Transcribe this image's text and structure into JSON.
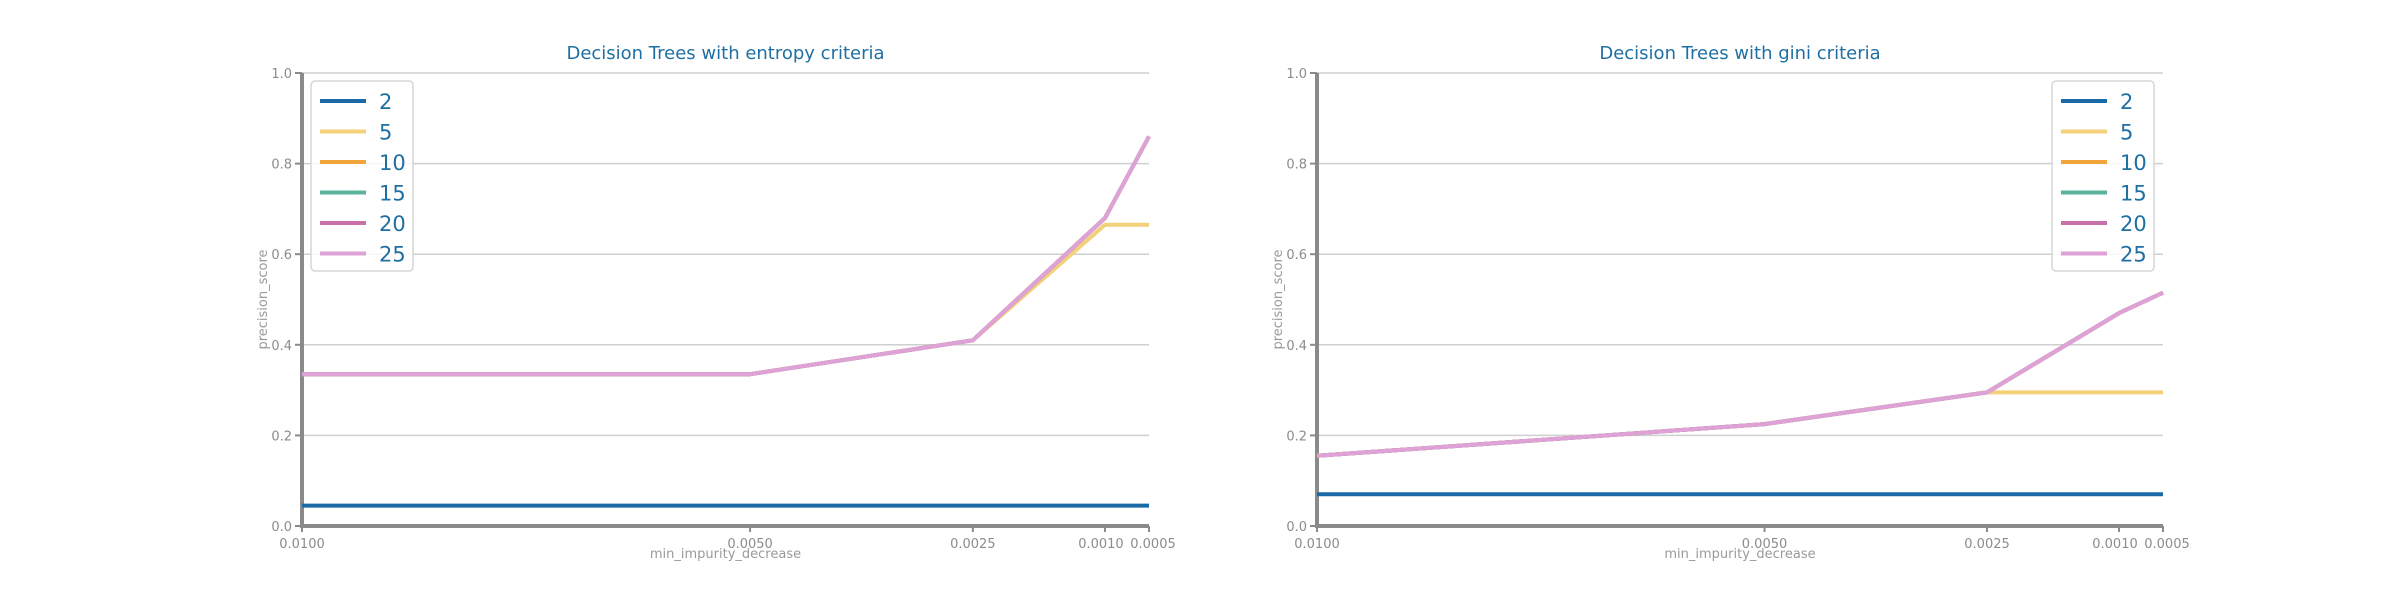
{
  "chart_data": [
    {
      "type": "line",
      "title": "Decision Trees with entropy criteria",
      "xlabel": "min_impurity_decrease",
      "ylabel": "precision_score",
      "x": [
        0.01,
        0.005,
        0.0025,
        0.001,
        0.0005
      ],
      "x_tick_labels": [
        "0.0100",
        "0.0050",
        "0.0025",
        "0.0010",
        "0.0005"
      ],
      "x_scale": "categorical-index",
      "ylim": [
        0.0,
        1.0
      ],
      "y_ticks": [
        0.0,
        0.2,
        0.4,
        0.6,
        0.8,
        1.0
      ],
      "y_tick_labels": [
        "0.0",
        "0.2",
        "0.4",
        "0.6",
        "0.8",
        "1.0"
      ],
      "grid": true,
      "legend_position": "top-left",
      "series": [
        {
          "name": "2",
          "color": "#1a6aa8",
          "values": [
            0.045,
            0.045,
            0.045,
            0.045,
            0.045
          ]
        },
        {
          "name": "5",
          "color": "#f2d17a",
          "values": [
            0.335,
            0.335,
            0.41,
            0.665,
            0.665
          ]
        },
        {
          "name": "10",
          "color": "#f0a43a",
          "values": [
            0.335,
            0.335,
            0.41,
            0.68,
            0.86
          ]
        },
        {
          "name": "15",
          "color": "#5bb39c",
          "values": [
            0.335,
            0.335,
            0.41,
            0.68,
            0.86
          ]
        },
        {
          "name": "20",
          "color": "#c871a9",
          "values": [
            0.335,
            0.335,
            0.41,
            0.68,
            0.86
          ]
        },
        {
          "name": "25",
          "color": "#dfa2d6",
          "values": [
            0.335,
            0.335,
            0.41,
            0.68,
            0.86
          ]
        }
      ]
    },
    {
      "type": "line",
      "title": "Decision Trees with gini criteria",
      "xlabel": "min_impurity_decrease",
      "ylabel": "precision_score",
      "x": [
        0.01,
        0.005,
        0.0025,
        0.001,
        0.0005
      ],
      "x_tick_labels": [
        "0.0100",
        "0.0050",
        "0.0025",
        "0.0010",
        "0.0005"
      ],
      "x_scale": "categorical-index",
      "ylim": [
        0.0,
        1.0
      ],
      "y_ticks": [
        0.0,
        0.2,
        0.4,
        0.6,
        0.8,
        1.0
      ],
      "y_tick_labels": [
        "0.0",
        "0.2",
        "0.4",
        "0.6",
        "0.8",
        "1.0"
      ],
      "grid": true,
      "legend_position": "top-right",
      "series": [
        {
          "name": "2",
          "color": "#1a6aa8",
          "values": [
            0.07,
            0.07,
            0.07,
            0.07,
            0.07
          ]
        },
        {
          "name": "5",
          "color": "#f2d17a",
          "values": [
            0.155,
            0.225,
            0.295,
            0.295,
            0.295
          ]
        },
        {
          "name": "10",
          "color": "#f0a43a",
          "values": [
            0.155,
            0.225,
            0.295,
            0.47,
            0.515
          ]
        },
        {
          "name": "15",
          "color": "#5bb39c",
          "values": [
            0.155,
            0.225,
            0.295,
            0.47,
            0.515
          ]
        },
        {
          "name": "20",
          "color": "#c871a9",
          "values": [
            0.155,
            0.225,
            0.295,
            0.47,
            0.515
          ]
        },
        {
          "name": "25",
          "color": "#dfa2d6",
          "values": [
            0.155,
            0.225,
            0.295,
            0.47,
            0.515
          ]
        }
      ]
    }
  ]
}
